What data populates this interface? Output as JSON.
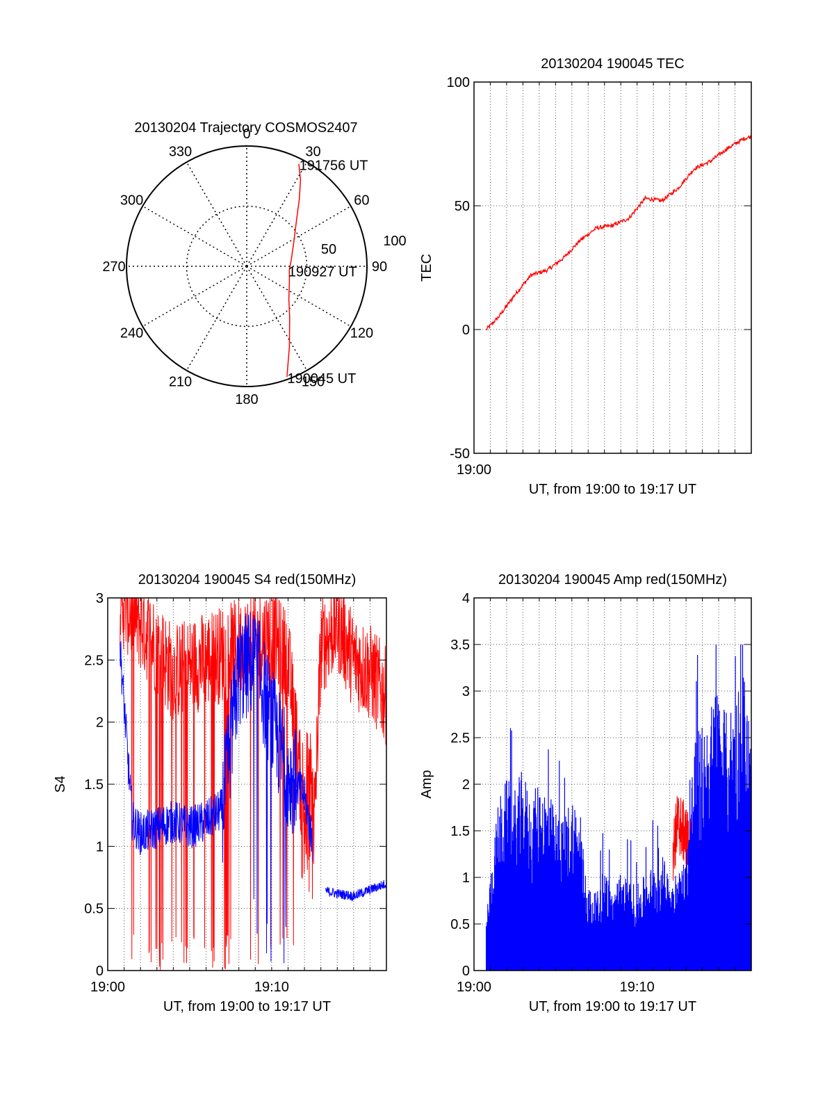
{
  "chart_data": [
    {
      "type": "polar",
      "title": "20130204 Trajectory COSMOS2407",
      "angle_labels": [
        "0",
        "30",
        "60",
        "90",
        "120",
        "150",
        "180",
        "210",
        "240",
        "270",
        "300",
        "330"
      ],
      "radial_labels": [
        "50",
        "100"
      ],
      "radial_range": [
        0,
        100
      ],
      "grid": true,
      "series": [
        {
          "name": "",
          "color": "#ff0000",
          "points_az_el": [
            [
              160,
              2
            ],
            [
              152,
              22
            ],
            [
              140,
              40
            ],
            [
              128,
              50
            ],
            [
              110,
              56
            ],
            [
              95,
              58
            ],
            [
              80,
              56
            ],
            [
              62,
              50
            ],
            [
              48,
              40
            ],
            [
              38,
              26
            ],
            [
              32,
              14
            ],
            [
              27,
              4
            ]
          ]
        }
      ],
      "annotations": [
        {
          "text": "191756 UT",
          "at_az_el": [
            27,
            4
          ]
        },
        {
          "text": "190927 UT",
          "at_az_el": [
            95,
            58
          ]
        },
        {
          "text": "190045 UT",
          "at_az_el": [
            160,
            2
          ]
        }
      ]
    },
    {
      "type": "line",
      "title": "20130204 190045 TEC",
      "xlabel": "UT, from 19:00 to 19:17 UT",
      "ylabel": "TEC",
      "x_tick_labels": [
        "19:00"
      ],
      "yticks": [
        -50,
        0,
        50,
        100
      ],
      "xlim_minutes": [
        0,
        17
      ],
      "ylim": [
        -50,
        100
      ],
      "grid": true,
      "series": [
        {
          "name": "",
          "color": "#ff0000",
          "x_minutes": [
            0.75,
            1.5,
            2.5,
            3.5,
            4.5,
            5.5,
            6.5,
            7.5,
            8.5,
            9.5,
            10.5,
            11.5,
            12.5,
            13.5,
            14.5,
            15.5,
            16.5,
            17.0
          ],
          "values": [
            0,
            5,
            14,
            22,
            24,
            29,
            36,
            41,
            42,
            45,
            53,
            52,
            57,
            65,
            68,
            73,
            77,
            78
          ]
        }
      ]
    },
    {
      "type": "line",
      "title": "20130204 190045 S4 red(150MHz)",
      "xlabel": "UT, from 19:00 to 19:17 UT",
      "ylabel": "S4",
      "x_tick_labels": [
        "19:00",
        "19:10"
      ],
      "yticks": [
        0,
        0.5,
        1,
        1.5,
        2,
        2.5,
        3
      ],
      "xlim_minutes": [
        0,
        17
      ],
      "ylim": [
        0,
        3
      ],
      "grid": true,
      "series": [
        {
          "name": "",
          "color": "#ff0000",
          "x_minutes": [
            0.75,
            2,
            4,
            6,
            8,
            10,
            11,
            12,
            12.5,
            13,
            14,
            15,
            16,
            17
          ],
          "values": [
            3,
            2.8,
            2.4,
            2.5,
            2.6,
            2.7,
            2.5,
            1.2,
            0.8,
            2.6,
            2.8,
            2.5,
            2.4,
            2.2
          ]
        },
        {
          "name": "",
          "color": "#0000ff",
          "x_minutes": [
            0.75,
            1.5,
            2,
            3,
            4,
            5,
            6,
            7,
            8,
            9,
            10,
            11,
            12,
            13,
            14,
            15,
            16,
            17
          ],
          "values": [
            2.6,
            1.2,
            1.1,
            1.15,
            1.2,
            1.15,
            1.2,
            1.3,
            2.4,
            2.5,
            2.0,
            1.6,
            1.4,
            0.65,
            0.62,
            0.6,
            0.65,
            0.7
          ]
        }
      ]
    },
    {
      "type": "area",
      "title": "20130204 190045 Amp red(150MHz)",
      "xlabel": "UT, from 19:00 to 19:17 UT",
      "ylabel": "Amp",
      "x_tick_labels": [
        "19:00",
        "19:10"
      ],
      "yticks": [
        0,
        0.5,
        1,
        1.5,
        2,
        2.5,
        3,
        3.5,
        4
      ],
      "xlim_minutes": [
        0,
        17
      ],
      "ylim": [
        0,
        4
      ],
      "grid": true,
      "series": [
        {
          "name": "",
          "color": "#ff0000",
          "x_minutes": [
            12.2,
            12.5,
            12.8,
            13.1,
            13.4
          ],
          "values": [
            1.3,
            1.6,
            1.5,
            1.4,
            1.2
          ]
        },
        {
          "name": "",
          "color": "#0000ff",
          "x_minutes": [
            0.75,
            1.0,
            1.5,
            2,
            2.5,
            3,
            3.5,
            4,
            4.5,
            5,
            5.5,
            6,
            6.5,
            7,
            7.5,
            8,
            8.5,
            9,
            9.5,
            10,
            10.5,
            11,
            11.5,
            12,
            12.5,
            13,
            13.5,
            14,
            14.5,
            15,
            15.5,
            16,
            16.5,
            17
          ],
          "values": [
            0.5,
            0.9,
            1.6,
            1.8,
            1.7,
            1.9,
            1.6,
            1.8,
            1.7,
            1.5,
            1.4,
            1.7,
            1.4,
            0.8,
            0.7,
            1.0,
            0.75,
            0.9,
            0.85,
            0.8,
            0.9,
            1.0,
            1.1,
            0.9,
            0.9,
            1.1,
            2.2,
            2.3,
            2.5,
            2.7,
            2.4,
            2.6,
            2.9,
            2.2
          ]
        }
      ]
    }
  ]
}
